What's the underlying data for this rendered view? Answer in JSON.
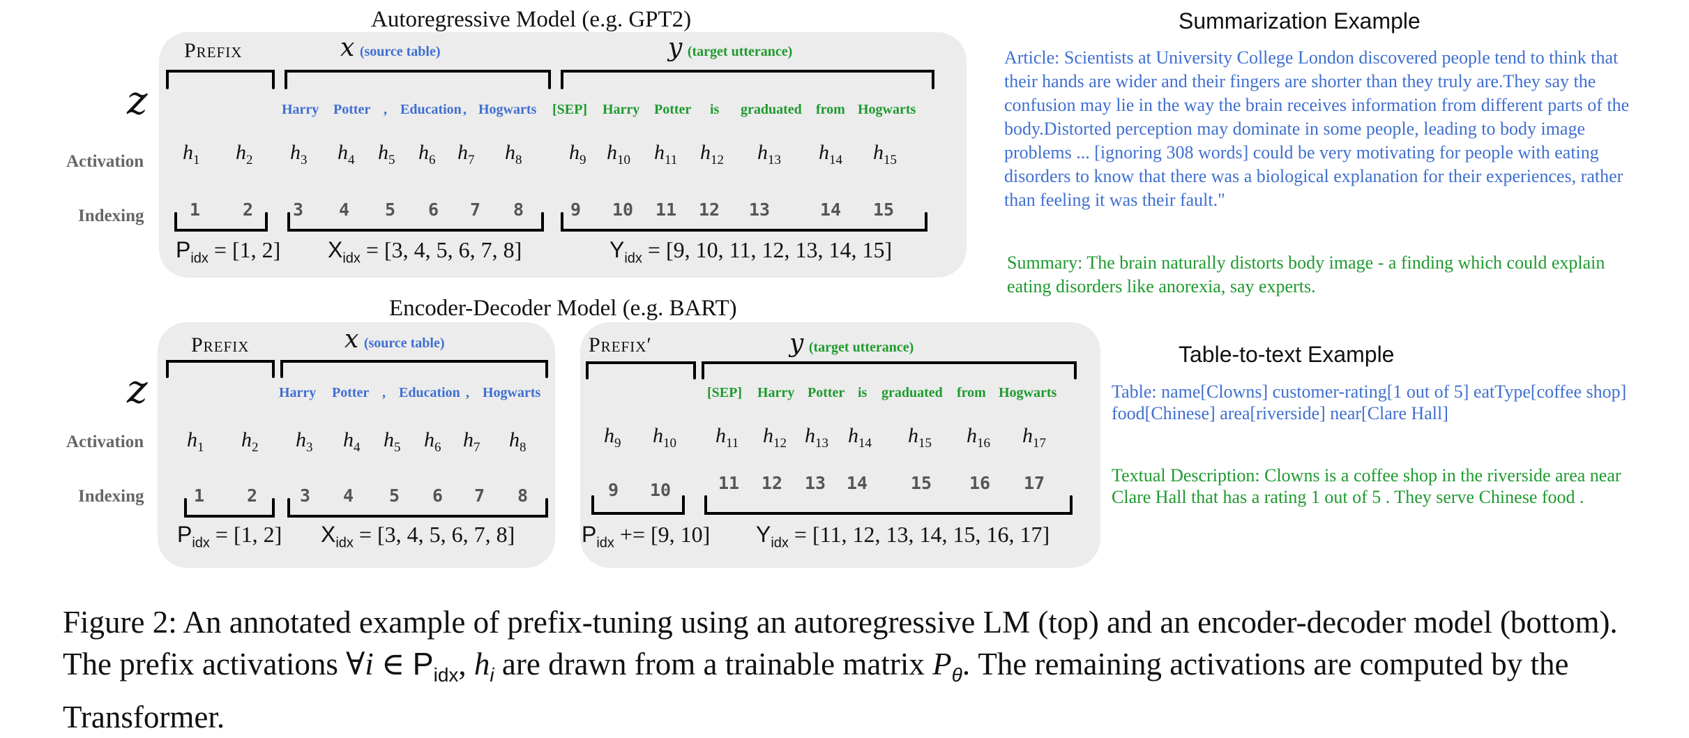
{
  "top": {
    "title": "Autoregressive Model (e.g. GPT2)",
    "prefix_label": "Prefix",
    "x_var": "x",
    "x_note": "(source table)",
    "y_var": "y",
    "y_note": "(target utterance)",
    "z": "z",
    "activation_label": "Activation",
    "indexing_label": "Indexing",
    "source_tokens": [
      "Harry",
      "Potter",
      ",",
      "Education",
      ",",
      "Hogwarts"
    ],
    "target_tokens": [
      "[SEP]",
      "Harry",
      "Potter",
      "is",
      "graduated",
      "from",
      "Hogwarts"
    ],
    "activations": [
      "1",
      "2",
      "3",
      "4",
      "5",
      "6",
      "7",
      "8",
      "9",
      "10",
      "11",
      "12",
      "13",
      "14",
      "15"
    ],
    "indices": [
      "1",
      "2",
      "3",
      "4",
      "5",
      "6",
      "7",
      "8",
      "9",
      "10",
      "11",
      "12",
      "13",
      "14",
      "15"
    ],
    "p_idx": "= [1, 2]",
    "x_idx": "= [3, 4, 5, 6, 7, 8]",
    "y_idx": "= [9, 10, 11, 12, 13, 14, 15]"
  },
  "bottom": {
    "title": "Encoder-Decoder Model (e.g. BART)",
    "prefix_label": "Prefix",
    "prefix2_label": "Prefix′",
    "x_var": "x",
    "x_note": "(source table)",
    "y_var": "y",
    "y_note": "(target utterance)",
    "z": "z",
    "activation_label": "Activation",
    "indexing_label": "Indexing",
    "source_tokens": [
      "Harry",
      "Potter",
      ",",
      "Education",
      ",",
      "Hogwarts"
    ],
    "target_tokens": [
      "[SEP]",
      "Harry",
      "Potter",
      "is",
      "graduated",
      "from",
      "Hogwarts"
    ],
    "enc_activations": [
      "1",
      "2",
      "3",
      "4",
      "5",
      "6",
      "7",
      "8"
    ],
    "enc_indices": [
      "1",
      "2",
      "3",
      "4",
      "5",
      "6",
      "7",
      "8"
    ],
    "dec_activations": [
      "9",
      "10",
      "11",
      "12",
      "13",
      "14",
      "15",
      "16",
      "17"
    ],
    "dec_indices": [
      "9",
      "10",
      "11",
      "12",
      "13",
      "14",
      "15",
      "16",
      "17"
    ],
    "p_idx": "= [1, 2]",
    "x_idx": "= [3, 4, 5, 6, 7, 8]",
    "p_idx2": "+= [9, 10]",
    "y_idx": "= [11, 12, 13, 14, 15, 16, 17]"
  },
  "idx_sub": "idx",
  "P_letter": "P",
  "X_letter": "X",
  "Y_letter": "Y",
  "h_letter": "h",
  "summarization": {
    "title": "Summarization Example",
    "article": "Article: Scientists at University College London discovered people tend to think that their hands are wider and their fingers are shorter than they truly are.They say the confusion may lie in the way the brain receives information from different parts of the body.Distorted perception may dominate in some people, leading to body image problems ... [ignoring 308 words] could be very motivating for people with eating disorders to know that there was a biological explanation for their experiences, rather than feeling it was their fault.\"",
    "summary": "Summary: The brain naturally distorts body image - a finding which could explain eating disorders like anorexia, say experts."
  },
  "table_to_text": {
    "title": "Table-to-text Example",
    "table": "Table:  name[Clowns] customer-rating[1 out of 5]  eatType[coffee shop] food[Chinese] area[riverside] near[Clare Hall]",
    "description": "Textual Description: Clowns is a coffee shop in the riverside area near Clare Hall that has a rating 1 out of 5 . They serve Chinese food ."
  },
  "caption": {
    "line1": "Figure 2:  An annotated example of prefix-tuning using an autoregressive LM (top) and an encoder-decoder model (bottom). The prefix activations ∀",
    "i_var": "i",
    "in_sym": " ∈ ",
    "comma": ", ",
    "mid": " are drawn from a trainable matrix ",
    "p_theta": "P",
    "theta": "θ",
    "end": ". The remaining activations are computed by the Transformer."
  },
  "colors": {
    "blue": "#3f6fd0",
    "green": "#1e9a2e",
    "panel": "#ececec"
  }
}
